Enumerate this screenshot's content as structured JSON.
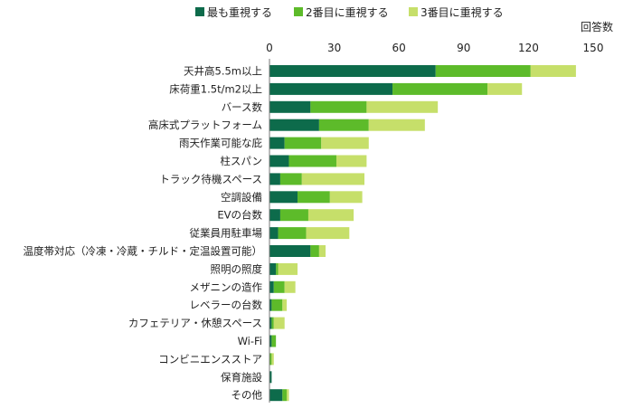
{
  "chart_data": {
    "type": "bar",
    "orientation": "horizontal",
    "stacked": true,
    "title": "",
    "xlabel": "回答数",
    "ylabel": "",
    "xlim": [
      0,
      150
    ],
    "xticks": [
      0,
      30,
      60,
      90,
      120,
      150
    ],
    "grid": false,
    "legend_position": "top",
    "categories": [
      "天井高5.5m以上",
      "床荷重1.5t/m2以上",
      "バース数",
      "高床式プラットフォーム",
      "雨天作業可能な庇",
      "柱スパン",
      "トラック待機スペース",
      "空調設備",
      "EVの台数",
      "従業員用駐車場",
      "温度帯対応（冷凍・冷蔵・チルド・定温設置可能）",
      "照明の照度",
      "メザニンの造作",
      "レベラーの台数",
      "カフェテリア・休憩スペース",
      "Wi-Fi",
      "コンビニエンスストア",
      "保育施設",
      "その他"
    ],
    "series": [
      {
        "name": "最も重視する",
        "color": "#0d6b4b",
        "values": [
          77,
          57,
          19,
          23,
          7,
          9,
          5,
          13,
          5,
          4,
          19,
          3,
          2,
          1,
          1,
          1,
          0,
          1,
          6
        ]
      },
      {
        "name": "2番目に重視する",
        "color": "#5dbb2a",
        "values": [
          44,
          44,
          26,
          23,
          17,
          22,
          10,
          15,
          13,
          13,
          4,
          1,
          5,
          5,
          1,
          2,
          1,
          0,
          2
        ]
      },
      {
        "name": "3番目に重視する",
        "color": "#c6df6a",
        "values": [
          21,
          16,
          33,
          26,
          22,
          14,
          29,
          15,
          21,
          20,
          3,
          9,
          5,
          2,
          5,
          0,
          1,
          0,
          1
        ]
      }
    ]
  }
}
